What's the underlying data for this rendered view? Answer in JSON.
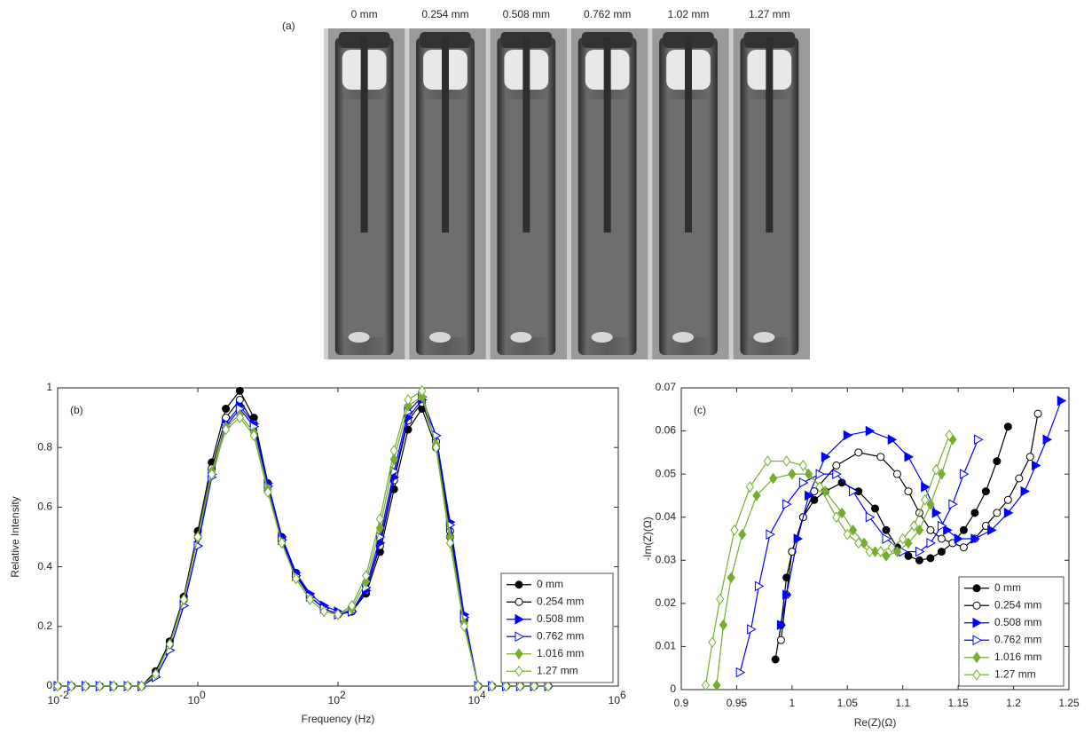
{
  "chart_data": [
    {
      "type": "image",
      "panel_label": "(a)",
      "labels": [
        "0 mm",
        "0.254 mm",
        "0.508 mm",
        "0.762 mm",
        "1.02 mm",
        "1.27 mm"
      ]
    },
    {
      "type": "line",
      "panel_label": "(b)",
      "xlabel": "Frequency (Hz)",
      "ylabel": "Relative Intensity",
      "xscale": "log",
      "xlim": [
        0.01,
        1000000
      ],
      "xticks": [
        {
          "value": 0.01,
          "label": "10",
          "exponent": "-2"
        },
        {
          "value": 1,
          "label": "10",
          "exponent": "0"
        },
        {
          "value": 100,
          "label": "10",
          "exponent": "2"
        },
        {
          "value": 10000,
          "label": "10",
          "exponent": "4"
        },
        {
          "value": 1000000,
          "label": "10",
          "exponent": "6"
        }
      ],
      "ylim": [
        0,
        1
      ],
      "yticks": [
        0,
        0.2,
        0.4,
        0.6,
        0.8,
        1
      ],
      "legend": "lower right",
      "x": [
        0.01,
        0.0158,
        0.0251,
        0.0398,
        0.0631,
        0.1,
        0.158,
        0.251,
        0.398,
        0.631,
        1,
        1.58,
        2.51,
        3.98,
        6.31,
        10,
        15.8,
        25.1,
        39.8,
        63.1,
        100,
        158,
        251,
        398,
        631,
        1000,
        1580,
        2510,
        3980,
        6310,
        10000,
        15800,
        25100,
        39800,
        63100,
        100000
      ],
      "series": [
        {
          "name": "0 mm",
          "color": "#000000",
          "marker": "circle",
          "filled": true,
          "values": [
            0,
            0,
            0,
            0,
            0,
            0,
            0,
            0.05,
            0.15,
            0.3,
            0.52,
            0.75,
            0.93,
            0.99,
            0.9,
            0.68,
            0.5,
            0.38,
            0.3,
            0.26,
            0.24,
            0.25,
            0.31,
            0.45,
            0.66,
            0.86,
            0.93,
            0.8,
            0.5,
            0.22,
            0,
            0,
            0,
            0,
            0,
            0
          ]
        },
        {
          "name": "0.254 mm",
          "color": "#000000",
          "marker": "circle",
          "filled": false,
          "values": [
            0,
            0,
            0,
            0,
            0,
            0,
            0,
            0.04,
            0.14,
            0.29,
            0.5,
            0.73,
            0.9,
            0.96,
            0.88,
            0.67,
            0.49,
            0.37,
            0.3,
            0.26,
            0.24,
            0.25,
            0.32,
            0.47,
            0.69,
            0.89,
            0.95,
            0.82,
            0.52,
            0.23,
            0,
            0,
            0,
            0,
            0,
            0
          ]
        },
        {
          "name": "0.508 mm",
          "color": "#0000ff",
          "marker": "triangle",
          "filled": true,
          "values": [
            0,
            0,
            0,
            0,
            0,
            0,
            0,
            0.03,
            0.12,
            0.27,
            0.47,
            0.71,
            0.88,
            0.94,
            0.88,
            0.68,
            0.5,
            0.38,
            0.31,
            0.27,
            0.25,
            0.25,
            0.32,
            0.48,
            0.7,
            0.9,
            0.96,
            0.84,
            0.55,
            0.24,
            0,
            0,
            0,
            0,
            0,
            0
          ]
        },
        {
          "name": "0.762 mm",
          "color": "#0000ff",
          "marker": "triangle",
          "filled": false,
          "values": [
            0,
            0,
            0,
            0,
            0,
            0,
            0,
            0.03,
            0.12,
            0.27,
            0.47,
            0.7,
            0.87,
            0.93,
            0.87,
            0.67,
            0.49,
            0.37,
            0.3,
            0.26,
            0.24,
            0.25,
            0.33,
            0.5,
            0.72,
            0.92,
            0.97,
            0.84,
            0.54,
            0.23,
            0,
            0,
            0,
            0,
            0,
            0
          ]
        },
        {
          "name": "1.016 mm",
          "color": "#77ac30",
          "marker": "diamond",
          "filled": true,
          "values": [
            0,
            0,
            0,
            0,
            0,
            0,
            0,
            0.04,
            0.14,
            0.29,
            0.5,
            0.72,
            0.87,
            0.91,
            0.85,
            0.66,
            0.48,
            0.36,
            0.29,
            0.25,
            0.24,
            0.26,
            0.35,
            0.53,
            0.76,
            0.94,
            0.97,
            0.81,
            0.5,
            0.21,
            0,
            0,
            0,
            0,
            0,
            0
          ]
        },
        {
          "name": "1.27 mm",
          "color": "#77ac30",
          "marker": "diamond",
          "filled": false,
          "values": [
            0,
            0,
            0,
            0,
            0,
            0,
            0,
            0.04,
            0.14,
            0.29,
            0.5,
            0.71,
            0.86,
            0.9,
            0.84,
            0.65,
            0.48,
            0.36,
            0.29,
            0.25,
            0.24,
            0.27,
            0.37,
            0.56,
            0.79,
            0.96,
            0.99,
            0.8,
            0.48,
            0.2,
            0,
            0,
            0,
            0,
            0,
            0
          ]
        }
      ]
    },
    {
      "type": "line",
      "panel_label": "(c)",
      "xlabel": "Re(Z)(Ω)",
      "ylabel": "-Im(Z)(Ω)",
      "xlim": [
        0.9,
        1.25
      ],
      "xticks": [
        0.9,
        0.95,
        1,
        1.05,
        1.1,
        1.15,
        1.2,
        1.25
      ],
      "ylim": [
        0,
        0.07
      ],
      "yticks": [
        0,
        0.01,
        0.02,
        0.03,
        0.04,
        0.05,
        0.06,
        0.07
      ],
      "legend": "lower right",
      "series": [
        {
          "name": "0 mm",
          "color": "#000000",
          "marker": "circle",
          "filled": true,
          "x": [
            0.985,
            0.99,
            0.995,
            1.0,
            1.01,
            1.02,
            1.03,
            1.045,
            1.06,
            1.075,
            1.085,
            1.095,
            1.105,
            1.115,
            1.125,
            1.135,
            1.145,
            1.155,
            1.165,
            1.175,
            1.185,
            1.195
          ],
          "values": [
            0.007,
            0.015,
            0.026,
            0.032,
            0.04,
            0.044,
            0.046,
            0.048,
            0.046,
            0.042,
            0.037,
            0.033,
            0.031,
            0.03,
            0.0305,
            0.032,
            0.034,
            0.037,
            0.041,
            0.046,
            0.053,
            0.061
          ]
        },
        {
          "name": "0.254 mm",
          "color": "#000000",
          "marker": "circle",
          "filled": false,
          "x": [
            0.99,
            0.995,
            1.0,
            1.01,
            1.02,
            1.04,
            1.06,
            1.08,
            1.095,
            1.105,
            1.115,
            1.125,
            1.135,
            1.145,
            1.155,
            1.165,
            1.175,
            1.185,
            1.195,
            1.205,
            1.215,
            1.222
          ],
          "values": [
            0.0115,
            0.022,
            0.032,
            0.04,
            0.046,
            0.052,
            0.055,
            0.054,
            0.05,
            0.046,
            0.041,
            0.037,
            0.035,
            0.034,
            0.033,
            0.035,
            0.038,
            0.041,
            0.044,
            0.049,
            0.054,
            0.064
          ]
        },
        {
          "name": "0.508 mm",
          "color": "#0000ff",
          "marker": "triangle",
          "filled": true,
          "x": [
            0.99,
            0.995,
            1.005,
            1.015,
            1.03,
            1.05,
            1.07,
            1.09,
            1.105,
            1.12,
            1.13,
            1.14,
            1.15,
            1.165,
            1.18,
            1.195,
            1.21,
            1.22,
            1.23,
            1.243
          ],
          "values": [
            0.015,
            0.022,
            0.035,
            0.045,
            0.054,
            0.059,
            0.06,
            0.058,
            0.054,
            0.047,
            0.041,
            0.037,
            0.035,
            0.035,
            0.037,
            0.041,
            0.046,
            0.052,
            0.058,
            0.067
          ]
        },
        {
          "name": "0.762 mm",
          "color": "#0000ff",
          "marker": "triangle",
          "filled": false,
          "x": [
            0.953,
            0.963,
            0.97,
            0.98,
            0.995,
            1.01,
            1.025,
            1.04,
            1.055,
            1.07,
            1.085,
            1.1,
            1.115,
            1.125,
            1.135,
            1.145,
            1.155,
            1.168
          ],
          "values": [
            0.004,
            0.014,
            0.024,
            0.036,
            0.043,
            0.048,
            0.05,
            0.05,
            0.046,
            0.04,
            0.035,
            0.032,
            0.032,
            0.034,
            0.038,
            0.043,
            0.05,
            0.058
          ]
        },
        {
          "name": "1.016 mm",
          "color": "#77ac30",
          "marker": "diamond",
          "filled": true,
          "x": [
            0.932,
            0.938,
            0.945,
            0.955,
            0.968,
            0.983,
            1.0,
            1.015,
            1.03,
            1.045,
            1.055,
            1.065,
            1.075,
            1.085,
            1.095,
            1.105,
            1.115,
            1.125,
            1.135,
            1.145
          ],
          "values": [
            0.001,
            0.015,
            0.026,
            0.036,
            0.045,
            0.049,
            0.05,
            0.05,
            0.046,
            0.041,
            0.037,
            0.034,
            0.032,
            0.031,
            0.032,
            0.034,
            0.037,
            0.043,
            0.05,
            0.058
          ]
        },
        {
          "name": "1.27 mm",
          "color": "#77ac30",
          "marker": "diamond",
          "filled": false,
          "x": [
            0.922,
            0.928,
            0.935,
            0.948,
            0.962,
            0.978,
            0.995,
            1.01,
            1.025,
            1.04,
            1.05,
            1.06,
            1.07,
            1.08,
            1.09,
            1.1,
            1.11,
            1.12,
            1.13,
            1.142
          ],
          "values": [
            0.001,
            0.011,
            0.021,
            0.037,
            0.047,
            0.053,
            0.053,
            0.052,
            0.047,
            0.04,
            0.036,
            0.034,
            0.032,
            0.032,
            0.033,
            0.035,
            0.038,
            0.044,
            0.051,
            0.059
          ]
        }
      ]
    }
  ]
}
